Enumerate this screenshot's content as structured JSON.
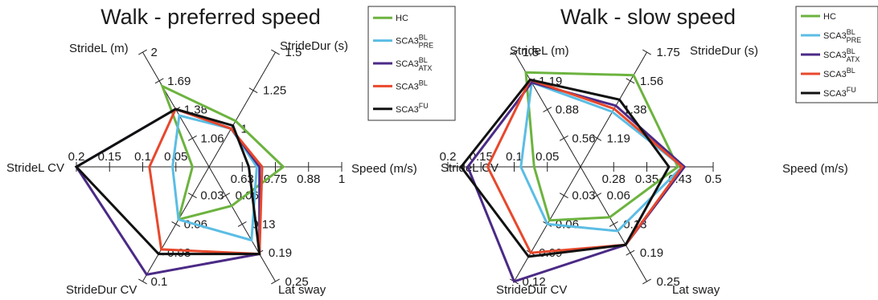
{
  "chart_data": [
    {
      "type": "radar",
      "title": "Walk - preferred speed",
      "axes": [
        {
          "key": "speed",
          "label": "Speed (m/s)",
          "ticks": [
            "0.63",
            "0.75",
            "0.88",
            "1"
          ],
          "range": [
            0.5,
            1
          ]
        },
        {
          "key": "stride_dur",
          "label": "StrideDur (s)",
          "ticks": [
            "1",
            "1.25",
            "1.5"
          ],
          "range": [
            0.75,
            1.5
          ]
        },
        {
          "key": "stride_l",
          "label": "StrideL (m)",
          "ticks": [
            "1.06",
            "1.38",
            "1.69",
            "2"
          ],
          "range": [
            0.75,
            2
          ]
        },
        {
          "key": "stride_l_cv",
          "label": "StrideL CV",
          "ticks": [
            "0.05",
            "0.1",
            "0.15",
            "0.2"
          ],
          "range": [
            0,
            0.2
          ]
        },
        {
          "key": "stride_dur_cv",
          "label": "StrideDur CV",
          "ticks": [
            "0.03",
            "0.06",
            "0.08",
            "0.1"
          ],
          "range": [
            0,
            0.1
          ]
        },
        {
          "key": "lat_sway",
          "label": "Lat sway",
          "ticks": [
            "0.06",
            "0.13",
            "0.19",
            "0.25"
          ],
          "range": [
            0,
            0.25
          ]
        }
      ],
      "series": [
        {
          "name": "HC",
          "sub": "",
          "sup": "",
          "color": "#6cb33f",
          "values": [
            0.78,
            1.05,
            1.63,
            0.025,
            0.046,
            0.085
          ]
        },
        {
          "name": "SCA3",
          "sub": "PRE",
          "sup": "BL",
          "color": "#5bbde4",
          "values": [
            0.68,
            1.0,
            1.31,
            0.055,
            0.046,
            0.16
          ]
        },
        {
          "name": "SCA3",
          "sub": "ATX",
          "sup": "BL",
          "color": "#4b2a86",
          "values": [
            0.69,
            1.0,
            1.38,
            0.2,
            0.094,
            0.19
          ]
        },
        {
          "name": "SCA3",
          "sub": "",
          "sup": "BL",
          "color": "#e8482c",
          "values": [
            0.7,
            1.0,
            1.38,
            0.09,
            0.072,
            0.19
          ]
        },
        {
          "name": "SCA3",
          "sub": "",
          "sup": "FU",
          "color": "#111111",
          "values": [
            0.65,
            1.02,
            1.38,
            0.2,
            0.076,
            0.19
          ]
        }
      ]
    },
    {
      "type": "radar",
      "title": "Walk - slow speed",
      "axes": [
        {
          "key": "speed",
          "label": "Speed (m/s)",
          "ticks": [
            "0.28",
            "0.35",
            "0.43",
            "0.5"
          ],
          "range": [
            0.2,
            0.5
          ]
        },
        {
          "key": "stride_dur",
          "label": "StrideDur (s)",
          "ticks": [
            "1.19",
            "1.38",
            "1.56",
            "1.75"
          ],
          "range": [
            1.0,
            1.75
          ]
        },
        {
          "key": "stride_l",
          "label": "StrideL (m)",
          "ticks": [
            "0.56",
            "0.88",
            "1.19",
            "1.5"
          ],
          "range": [
            0.25,
            1.5
          ]
        },
        {
          "key": "stride_l_cv",
          "label": "StrideL CV",
          "ticks": [
            "0.05",
            "0.1",
            "0.15",
            "0.2"
          ],
          "range": [
            0,
            0.2
          ]
        },
        {
          "key": "stride_dur_cv",
          "label": "StrideDur CV",
          "ticks": [
            "0.03",
            "0.06",
            "0.09",
            "0.12"
          ],
          "range": [
            0,
            0.12
          ]
        },
        {
          "key": "lat_sway",
          "label": "Lat sway",
          "ticks": [
            "0.06",
            "0.13",
            "0.19",
            "0.25"
          ],
          "range": [
            0,
            0.25
          ]
        }
      ],
      "series": [
        {
          "name": "HC",
          "sub": "",
          "sup": "",
          "color": "#6cb33f",
          "values": [
            0.42,
            1.6,
            1.28,
            0.07,
            0.056,
            0.11
          ]
        },
        {
          "name": "SCA3",
          "sub": "PRE",
          "sup": "BL",
          "color": "#5bbde4",
          "values": [
            0.43,
            1.36,
            1.17,
            0.09,
            0.06,
            0.14
          ]
        },
        {
          "name": "SCA3",
          "sub": "ATX",
          "sup": "BL",
          "color": "#4b2a86",
          "values": [
            0.435,
            1.4,
            1.17,
            0.17,
            0.125,
            0.17
          ]
        },
        {
          "name": "SCA3",
          "sub": "",
          "sup": "BL",
          "color": "#e8482c",
          "values": [
            0.43,
            1.38,
            1.2,
            0.14,
            0.09,
            0.17
          ]
        },
        {
          "name": "SCA3",
          "sub": "",
          "sup": "FU",
          "color": "#111111",
          "values": [
            0.4,
            1.44,
            1.2,
            0.18,
            0.094,
            0.17
          ]
        }
      ]
    }
  ]
}
